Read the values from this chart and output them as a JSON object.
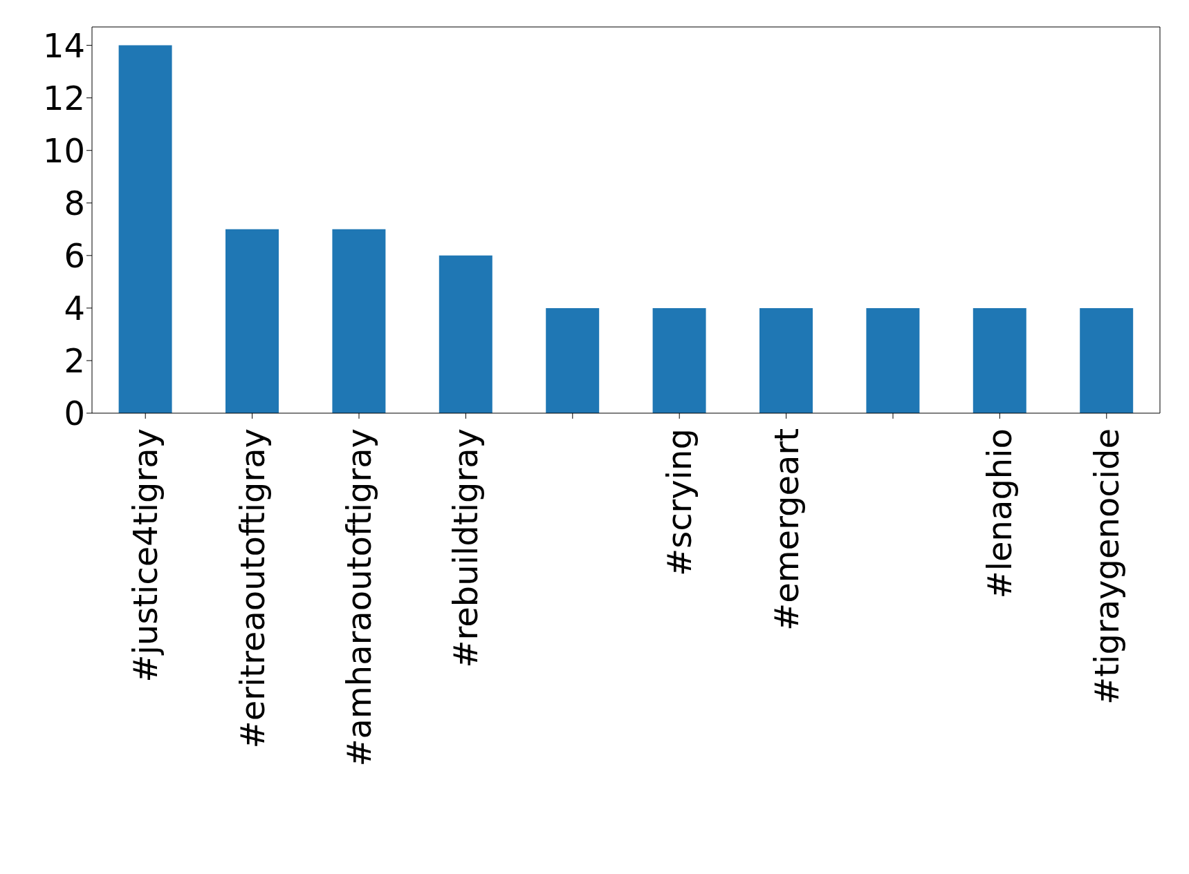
{
  "chart_data": {
    "type": "bar",
    "categories": [
      "#justice4tigray",
      "#eritreaoutoftigray",
      "#amharaoutoftigray",
      "#rebuildtigray",
      null,
      "#scrying",
      "#emergeart",
      null,
      "#lenaghio",
      "#tigraygenocide"
    ],
    "values": [
      14,
      7,
      7,
      6,
      4,
      4,
      4,
      4,
      4,
      4
    ],
    "color": "#1f77b4",
    "ylim": [
      0,
      14.7
    ],
    "yticks": [
      0,
      2,
      4,
      6,
      8,
      10,
      12,
      14
    ],
    "grid": false,
    "legend": false
  }
}
